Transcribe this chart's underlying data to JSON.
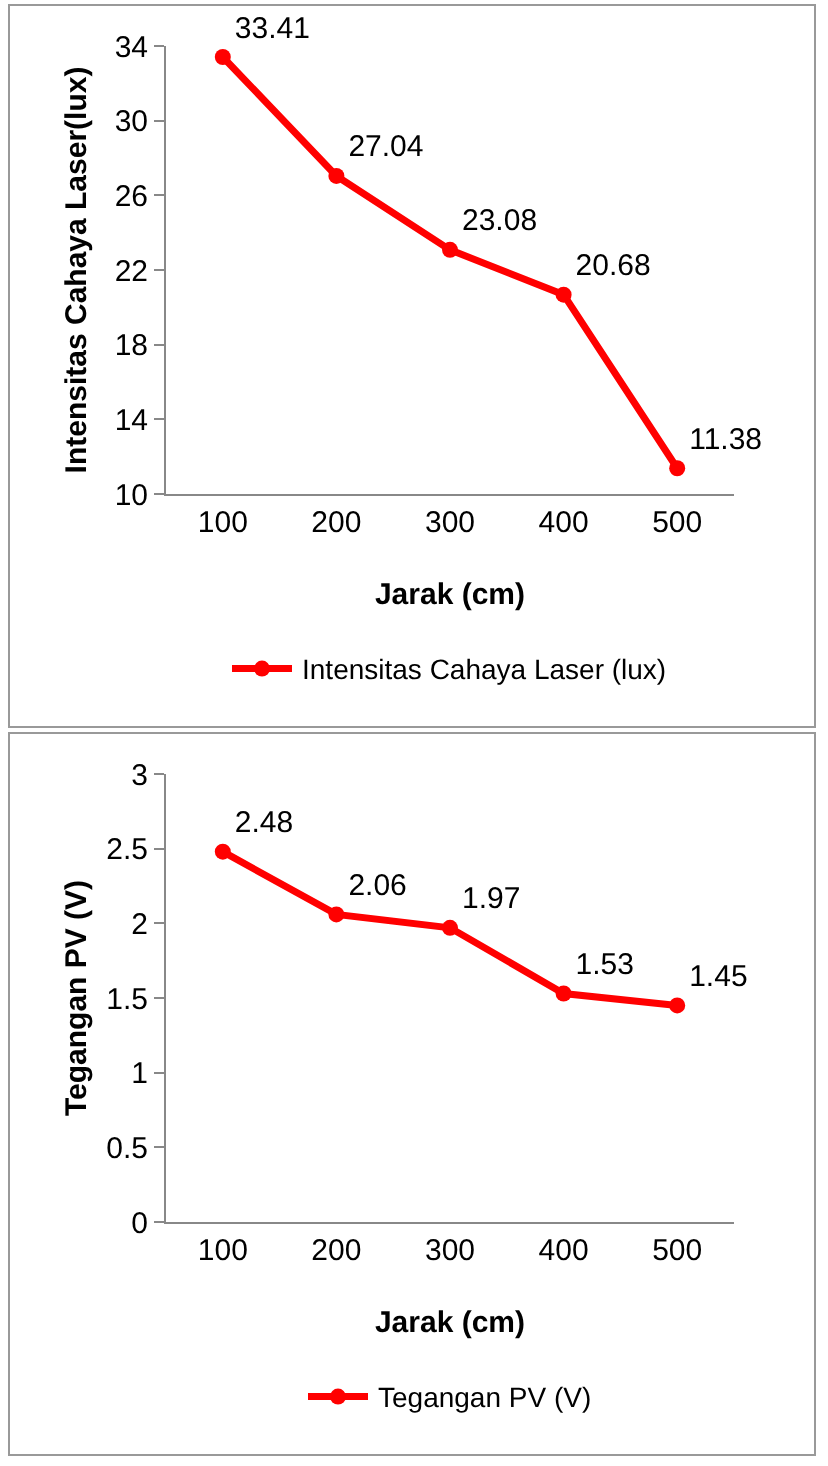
{
  "chart_data": [
    {
      "type": "line",
      "xlabel": "Jarak (cm)",
      "ylabel": "Intensitas Cahaya Laser(lux)",
      "categories": [
        "100",
        "200",
        "300",
        "400",
        "500"
      ],
      "series": [
        {
          "name": "Intensitas Cahaya Laser (lux)",
          "color": "#ff0000",
          "values": [
            33.41,
            27.04,
            23.08,
            20.68,
            11.38
          ]
        }
      ],
      "ylim": [
        10,
        34
      ],
      "yticks": [
        10,
        14,
        18,
        22,
        26,
        30,
        34
      ],
      "grid": false,
      "legend": "bottom",
      "marker": "circle",
      "line_style": "solid",
      "data_labels": true
    },
    {
      "type": "line",
      "xlabel": "Jarak (cm)",
      "ylabel": "Tegangan PV (V)",
      "categories": [
        "100",
        "200",
        "300",
        "400",
        "500"
      ],
      "series": [
        {
          "name": "Tegangan PV (V)",
          "color": "#ff0000",
          "values": [
            2.48,
            2.06,
            1.97,
            1.53,
            1.45
          ]
        }
      ],
      "ylim": [
        0,
        3
      ],
      "yticks": [
        0,
        0.5,
        1,
        1.5,
        2,
        2.5,
        3
      ],
      "grid": false,
      "legend": "bottom",
      "marker": "circle",
      "line_style": "solid",
      "data_labels": true
    }
  ]
}
